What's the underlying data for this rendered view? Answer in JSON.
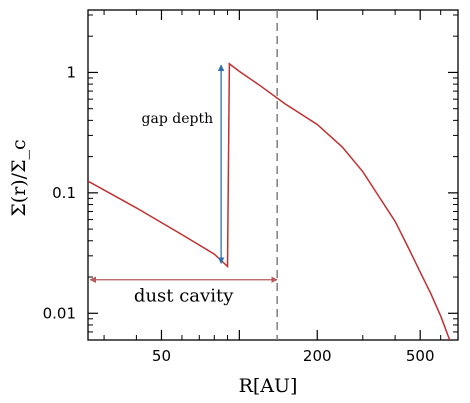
{
  "chart_data": {
    "type": "line",
    "title": "",
    "xlabel": "R[AU]",
    "ylabel": "Σ(r)/Σ_c",
    "x_scale": "log",
    "y_scale": "log",
    "xlim": [
      26,
      700
    ],
    "ylim": [
      0.006,
      3.3
    ],
    "x_ticks": [
      50,
      100,
      200,
      500
    ],
    "x_tick_labels": [
      "50",
      "",
      "200",
      "500"
    ],
    "y_ticks": [
      0.01,
      0.1,
      1
    ],
    "y_tick_labels": [
      "0.01",
      "0.1",
      "1"
    ],
    "grid": false,
    "legend": "none",
    "series": [
      {
        "color": "#c03030",
        "points": [
          [
            26,
            0.125
          ],
          [
            40,
            0.075
          ],
          [
            60,
            0.045
          ],
          [
            80,
            0.031
          ],
          [
            90,
            0.0245
          ],
          [
            91.5,
            1.18
          ],
          [
            100,
            1.02
          ],
          [
            120,
            0.78
          ],
          [
            150,
            0.55
          ],
          [
            200,
            0.37
          ],
          [
            250,
            0.24
          ],
          [
            300,
            0.15
          ],
          [
            350,
            0.09
          ],
          [
            400,
            0.058
          ],
          [
            450,
            0.035
          ],
          [
            500,
            0.022
          ],
          [
            550,
            0.0145
          ],
          [
            600,
            0.0095
          ],
          [
            650,
            0.006
          ]
        ]
      }
    ],
    "vline": {
      "x": 140,
      "color": "#777777",
      "style": "dashed"
    },
    "annotations": {
      "gap_depth": {
        "text": "gap depth",
        "x": 85,
        "y_from": 0.026,
        "y_to": 1.15,
        "color": "#2f6fae"
      },
      "dust_cavity": {
        "text": "dust cavity",
        "x_from": 26.5,
        "x_to": 140,
        "y": 0.019,
        "color": "#b55a5a"
      }
    }
  }
}
